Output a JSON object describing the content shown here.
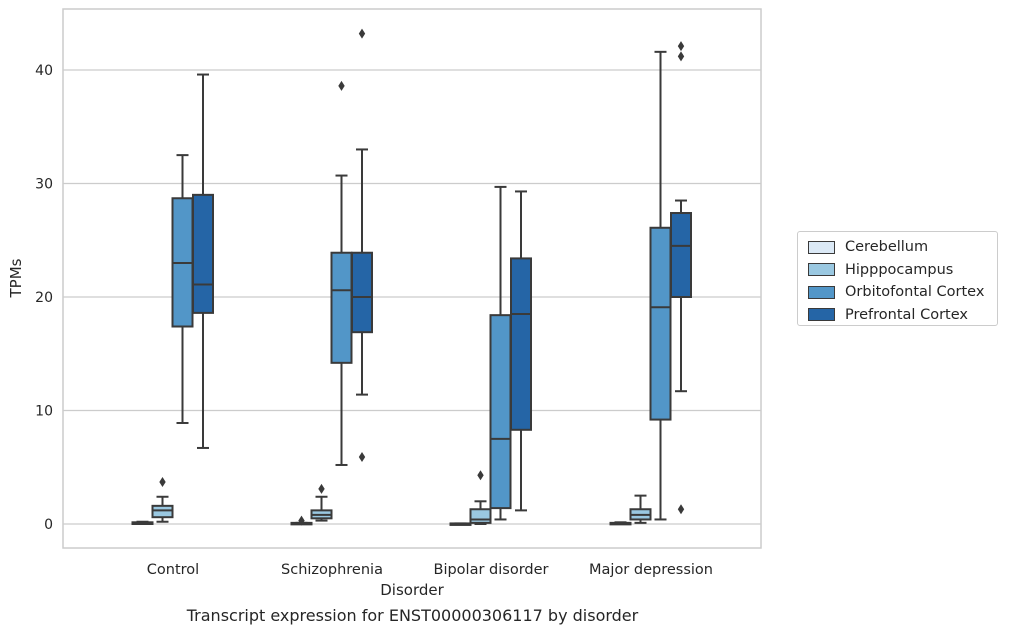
{
  "chart_data": {
    "type": "box",
    "xlabel": "Disorder",
    "ylabel": "TPMs",
    "ylim": [
      -2,
      45.5
    ],
    "yticks": [
      0,
      10,
      20,
      30,
      40
    ],
    "grid": "horizontal",
    "legend_position": "right",
    "categories": [
      "Control",
      "Schizophrenia",
      "Bipolar disorder",
      "Major depression"
    ],
    "series": [
      {
        "name": "Cerebellum",
        "color": "#dbe9f6",
        "boxes": [
          {
            "whislo": 0.0,
            "q1": 0.0,
            "med": 0.05,
            "q3": 0.15,
            "whishi": 0.2,
            "fliers": []
          },
          {
            "whislo": 0.0,
            "q1": 0.0,
            "med": 0.0,
            "q3": 0.1,
            "whishi": 0.1,
            "fliers": [
              0.3
            ]
          },
          {
            "whislo": 0.0,
            "q1": 0.0,
            "med": 0.0,
            "q3": 0.05,
            "whishi": 0.05,
            "fliers": []
          },
          {
            "whislo": 0.0,
            "q1": 0.0,
            "med": 0.05,
            "q3": 0.1,
            "whishi": 0.15,
            "fliers": []
          }
        ]
      },
      {
        "name": "Hipppocampus",
        "color": "#9ac8e1",
        "boxes": [
          {
            "whislo": 0.2,
            "q1": 0.6,
            "med": 1.2,
            "q3": 1.6,
            "whishi": 2.4,
            "fliers": [
              3.7
            ]
          },
          {
            "whislo": 0.3,
            "q1": 0.5,
            "med": 0.8,
            "q3": 1.2,
            "whishi": 2.4,
            "fliers": [
              3.1
            ]
          },
          {
            "whislo": 0.0,
            "q1": 0.1,
            "med": 0.4,
            "q3": 1.3,
            "whishi": 2.0,
            "fliers": [
              4.3
            ]
          },
          {
            "whislo": 0.1,
            "q1": 0.4,
            "med": 0.8,
            "q3": 1.3,
            "whishi": 2.5,
            "fliers": []
          }
        ]
      },
      {
        "name": "Orbitofontal Cortex",
        "color": "#5296c8",
        "boxes": [
          {
            "whislo": 8.9,
            "q1": 17.4,
            "med": 23.0,
            "q3": 28.7,
            "whishi": 32.5,
            "fliers": []
          },
          {
            "whislo": 5.2,
            "q1": 14.2,
            "med": 20.6,
            "q3": 23.9,
            "whishi": 30.7,
            "fliers": [
              38.6
            ]
          },
          {
            "whislo": 0.4,
            "q1": 1.4,
            "med": 7.5,
            "q3": 18.4,
            "whishi": 29.7,
            "fliers": []
          },
          {
            "whislo": 0.4,
            "q1": 9.2,
            "med": 19.1,
            "q3": 26.1,
            "whishi": 41.6,
            "fliers": []
          }
        ]
      },
      {
        "name": "Prefrontal Cortex",
        "color": "#2565a6",
        "boxes": [
          {
            "whislo": 6.7,
            "q1": 18.6,
            "med": 21.1,
            "q3": 29.0,
            "whishi": 39.6,
            "fliers": []
          },
          {
            "whislo": 11.4,
            "q1": 16.9,
            "med": 20.0,
            "q3": 23.9,
            "whishi": 33.0,
            "fliers": [
              5.9,
              43.2
            ]
          },
          {
            "whislo": 1.2,
            "q1": 8.3,
            "med": 18.5,
            "q3": 23.4,
            "whishi": 29.3,
            "fliers": []
          },
          {
            "whislo": 11.7,
            "q1": 20.0,
            "med": 24.5,
            "q3": 27.4,
            "whishi": 28.5,
            "fliers": [
              1.3,
              41.2,
              42.1
            ]
          }
        ]
      }
    ]
  },
  "caption": "Transcript expression for ENST00000306117 by disorder"
}
